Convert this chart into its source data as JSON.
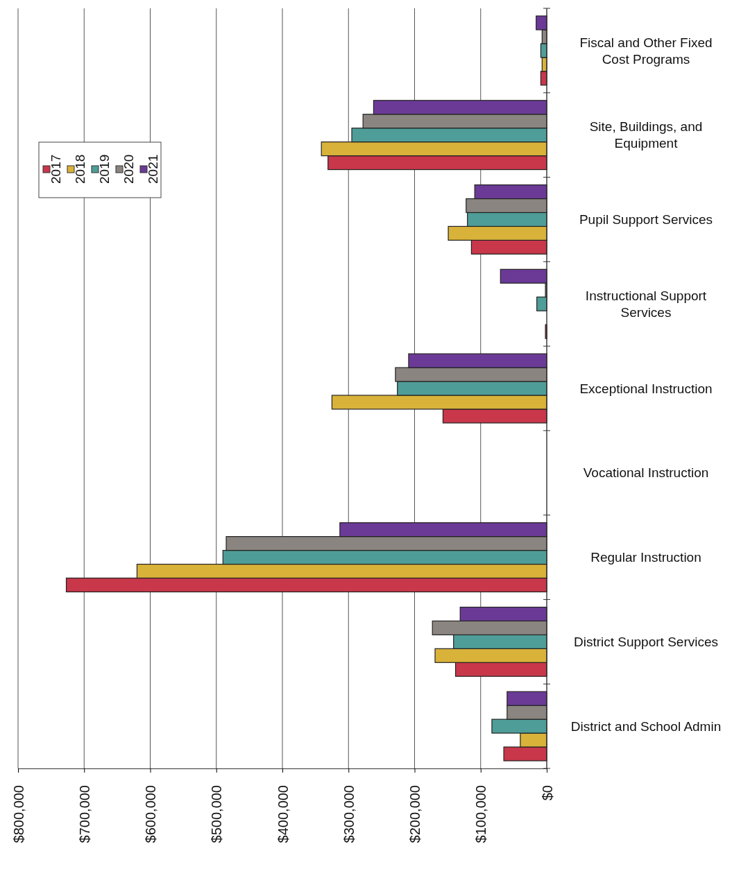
{
  "chart_data": {
    "type": "bar",
    "orientation": "horizontal",
    "categories": [
      "Fiscal and Other Fixed Cost Programs",
      "Site, Buildings, and Equipment",
      "Pupil Support Services",
      "Instructional Support Services",
      "Exceptional Instruction",
      "Vocational Instruction",
      "Regular Instruction",
      "District Support Services",
      "District and School Admin"
    ],
    "series": [
      {
        "name": "2017",
        "color": "#c8374a",
        "values": [
          9000,
          331000,
          114000,
          2000,
          157000,
          null,
          727000,
          138000,
          65000
        ]
      },
      {
        "name": "2018",
        "color": "#d9b23a",
        "values": [
          7000,
          341000,
          149000,
          null,
          325000,
          null,
          620000,
          169000,
          40000
        ]
      },
      {
        "name": "2019",
        "color": "#4f9d98",
        "values": [
          9000,
          295000,
          120000,
          15000,
          226000,
          null,
          490000,
          141000,
          83000
        ]
      },
      {
        "name": "2020",
        "color": "#8a8580",
        "values": [
          7000,
          278000,
          122000,
          2000,
          229000,
          null,
          485000,
          173000,
          60000
        ]
      },
      {
        "name": "2021",
        "color": "#6b3a96",
        "values": [
          16000,
          262000,
          109000,
          70000,
          209000,
          null,
          313000,
          131000,
          60000
        ]
      }
    ],
    "xlim": [
      800000,
      0
    ],
    "xticks": [
      {
        "value": 800000,
        "label": "$800,000"
      },
      {
        "value": 700000,
        "label": "$700,000"
      },
      {
        "value": 600000,
        "label": "$600,000"
      },
      {
        "value": 500000,
        "label": "$500,000"
      },
      {
        "value": 400000,
        "label": "$400,000"
      },
      {
        "value": 300000,
        "label": "$300,000"
      },
      {
        "value": 200000,
        "label": "$200,000"
      },
      {
        "value": 100000,
        "label": "$100,000"
      },
      {
        "value": 0,
        "label": "$0"
      }
    ],
    "grid": "x",
    "legend": "top left"
  }
}
